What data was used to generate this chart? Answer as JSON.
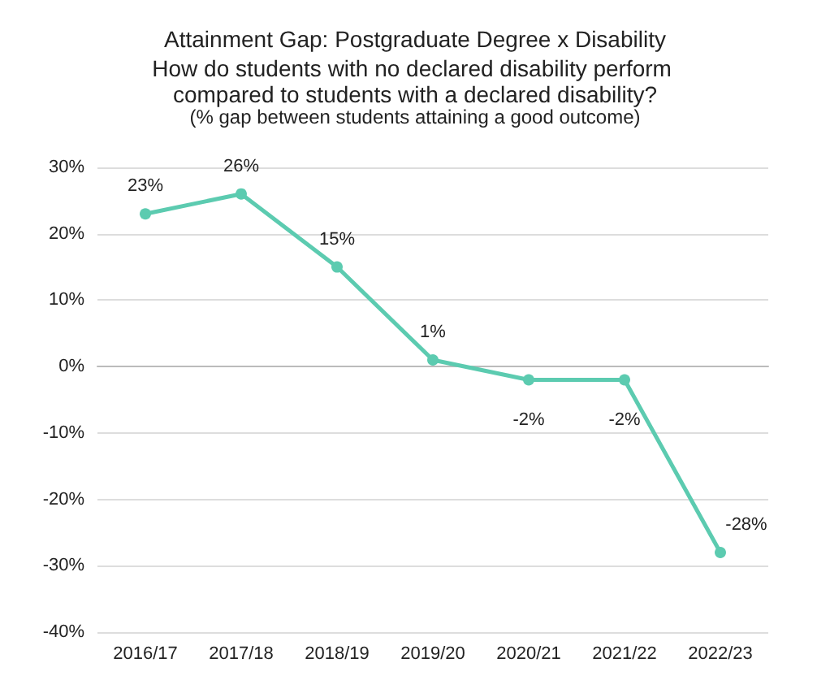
{
  "chart_data": {
    "type": "line",
    "title": "Attainment Gap: Postgraduate Degree x Disability",
    "subtitle": "How do students with no declared disability perform compared to students with a declared disability?",
    "annotations": [
      "(% gap between students attaining a good outcome)"
    ],
    "categories": [
      "2016/17",
      "2017/18",
      "2018/19",
      "2019/20",
      "2020/21",
      "2021/22",
      "2022/23"
    ],
    "series": [
      {
        "color": "#5ccbb0",
        "values": [
          23,
          26,
          15,
          1,
          -2,
          -2,
          -28
        ],
        "value_labels": [
          "23%",
          "26%",
          "15%",
          "1%",
          "-2%",
          "-2%",
          "-28%"
        ]
      }
    ],
    "ylim": [
      -40,
      30
    ],
    "yticks": [
      {
        "value": -40,
        "label": "-40%"
      },
      {
        "value": -30,
        "label": "-30%"
      },
      {
        "value": -20,
        "label": "-20%"
      },
      {
        "value": -10,
        "label": "-10%"
      },
      {
        "value": 0,
        "label": "0%"
      },
      {
        "value": 10,
        "label": "10%"
      },
      {
        "value": 20,
        "label": "20%"
      },
      {
        "value": 30,
        "label": "30%"
      }
    ],
    "grid": "y",
    "marker": "circle",
    "line_style": "solid"
  }
}
